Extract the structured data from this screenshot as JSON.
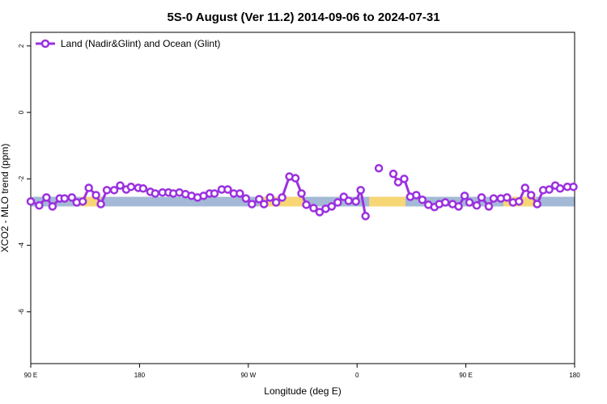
{
  "chart_data": {
    "type": "line",
    "title": "5S-0 August (Ver 11.2)   2014-09-06 to 2024-07-31",
    "xlabel": "Longitude (deg E)",
    "ylabel": "XCO2 - MLO trend (ppm)",
    "xlim": [
      90,
      540
    ],
    "ylim": [
      -7.56,
      2.41
    ],
    "xticks": [
      {
        "value": 90,
        "label": "90 E"
      },
      {
        "value": 180,
        "label": "180"
      },
      {
        "value": 270,
        "label": "90 W"
      },
      {
        "value": 360,
        "label": "0"
      },
      {
        "value": 450,
        "label": "90 E"
      },
      {
        "value": 540,
        "label": "180"
      }
    ],
    "yticks": [
      2,
      0,
      -2,
      -4,
      -6
    ],
    "legend": "upper left",
    "band": {
      "range": [
        -2.83,
        -2.54
      ],
      "color": "#a3b9d6",
      "highlight_color": "#f7d675",
      "highlight_x": [
        [
          131,
          148
        ],
        [
          279,
          316
        ],
        [
          370,
          400
        ],
        [
          481,
          508
        ]
      ]
    },
    "x": [
      90,
      97,
      103,
      108,
      114,
      118,
      124,
      128,
      133,
      138,
      144,
      148,
      153,
      159,
      164,
      169,
      173,
      179,
      183,
      189,
      193,
      199,
      204,
      208,
      213,
      218,
      223,
      228,
      233,
      238,
      242,
      248,
      253,
      258,
      263,
      268,
      273,
      279,
      283,
      288,
      293,
      298,
      304,
      309,
      314,
      318,
      324,
      329,
      334,
      339,
      344,
      349,
      353,
      359,
      363,
      367,
      373,
      378,
      383,
      390,
      394,
      399,
      404,
      409,
      414,
      419,
      424,
      428,
      433,
      439,
      444,
      449,
      453,
      459,
      463,
      469,
      473,
      479,
      484,
      489,
      494,
      499,
      504,
      509,
      514,
      519,
      524,
      528,
      534,
      539
    ],
    "series": [
      {
        "name": "Land (Nadir&Glint) and Ocean (Glint)",
        "color": "#9b30e0",
        "values": [
          -2.68,
          -2.8,
          -2.56,
          -2.83,
          -2.59,
          -2.59,
          -2.56,
          -2.71,
          -2.68,
          -2.27,
          -2.49,
          -2.76,
          -2.34,
          -2.34,
          -2.2,
          -2.32,
          -2.24,
          -2.27,
          -2.29,
          -2.39,
          -2.44,
          -2.41,
          -2.41,
          -2.44,
          -2.41,
          -2.46,
          -2.51,
          -2.56,
          -2.51,
          -2.44,
          -2.44,
          -2.32,
          -2.32,
          -2.44,
          -2.44,
          -2.59,
          -2.76,
          -2.61,
          -2.76,
          -2.56,
          -2.71,
          -2.56,
          -1.93,
          -1.98,
          -2.44,
          -2.78,
          -2.88,
          -3.0,
          -2.9,
          -2.83,
          -2.71,
          -2.54,
          -2.66,
          -2.68,
          -2.34,
          -3.12,
          null,
          -1.68,
          null,
          -1.85,
          -2.1,
          -2.0,
          -2.54,
          -2.49,
          -2.63,
          -2.78,
          -2.85,
          -2.76,
          -2.71,
          -2.76,
          -2.83,
          -2.51,
          -2.71,
          -2.8,
          -2.56,
          -2.83,
          -2.59,
          -2.59,
          -2.56,
          -2.71,
          -2.68,
          -2.27,
          -2.49,
          -2.76,
          -2.34,
          -2.32,
          -2.2,
          -2.29,
          -2.24,
          -2.24
        ]
      }
    ]
  }
}
